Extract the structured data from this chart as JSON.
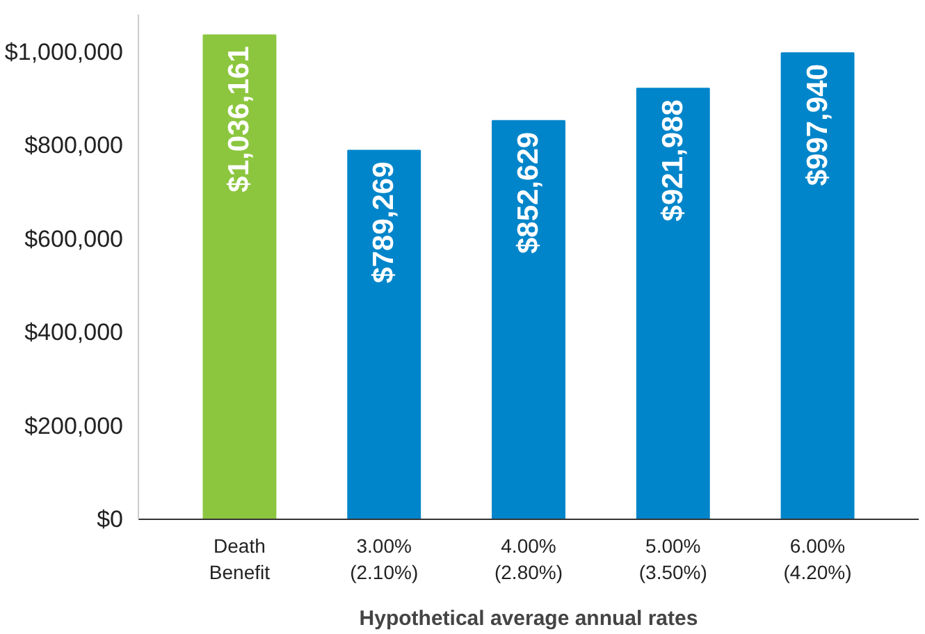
{
  "chart_data": {
    "type": "bar",
    "xlabel": "Hypothetical average annual rates",
    "categories": [
      "Death\nBenefit",
      "3.00%\n(2.10%)",
      "4.00%\n(2.80%)",
      "5.00%\n(3.50%)",
      "6.00%\n(4.20%)"
    ],
    "values": [
      1036161,
      789269,
      852629,
      921988,
      997940
    ],
    "colors": [
      "#8cc63f",
      "#0085ca",
      "#0085ca",
      "#0085ca",
      "#0085ca"
    ],
    "value_labels": [
      "$1,036,161",
      "$789,269",
      "$852,629",
      "$921,988",
      "$997,940"
    ],
    "ylim": [
      0,
      1080000
    ],
    "yticks": [
      {
        "value": 0,
        "label": "$0"
      },
      {
        "value": 200000,
        "label": "$200,000"
      },
      {
        "value": 400000,
        "label": "$400,000"
      },
      {
        "value": 600000,
        "label": "$600,000"
      },
      {
        "value": 800000,
        "label": "$800,000"
      },
      {
        "value": 1000000,
        "label": "$1,000,000"
      }
    ],
    "grid": false
  }
}
